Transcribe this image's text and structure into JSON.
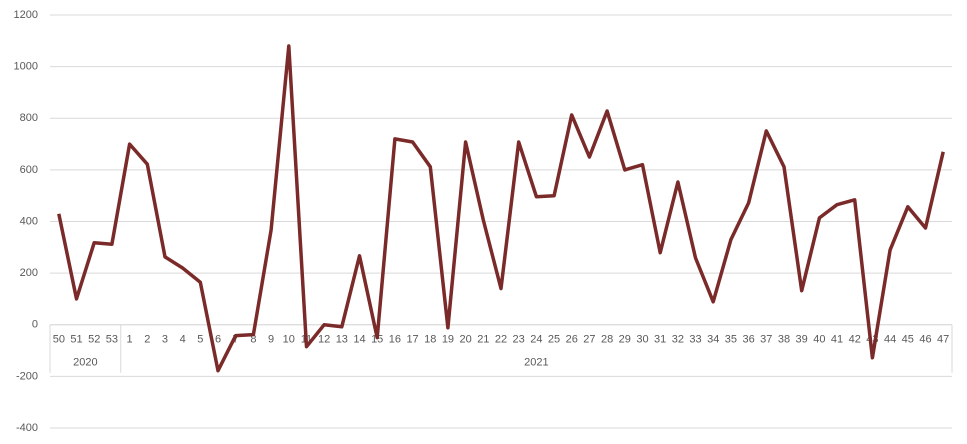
{
  "chart_data": {
    "type": "line",
    "categories": [
      "50",
      "51",
      "52",
      "53",
      "1",
      "2",
      "3",
      "4",
      "5",
      "6",
      "7",
      "8",
      "9",
      "10",
      "11",
      "12",
      "13",
      "14",
      "15",
      "16",
      "17",
      "18",
      "19",
      "20",
      "21",
      "22",
      "23",
      "24",
      "25",
      "26",
      "27",
      "28",
      "29",
      "30",
      "31",
      "32",
      "33",
      "34",
      "35",
      "36",
      "37",
      "38",
      "39",
      "40",
      "41",
      "42",
      "43",
      "44",
      "45",
      "46",
      "47"
    ],
    "x_groups": [
      {
        "label": "2020",
        "size": 4
      },
      {
        "label": "2021",
        "size": 47
      }
    ],
    "series": [
      {
        "color": "#7b2a2a",
        "values": [
          430,
          100,
          318,
          312,
          700,
          622,
          263,
          220,
          165,
          -178,
          -42,
          -38,
          367,
          1080,
          -85,
          0,
          -8,
          267,
          -50,
          720,
          708,
          612,
          -12,
          708,
          406,
          140,
          708,
          496,
          500,
          813,
          650,
          828,
          600,
          620,
          279,
          553,
          259,
          89,
          330,
          472,
          751,
          612,
          132,
          414,
          465,
          484,
          -128,
          290,
          457,
          375,
          670
        ]
      }
    ],
    "ylim": [
      -400,
      1200
    ],
    "yticks": [
      -400,
      -200,
      0,
      200,
      400,
      600,
      800,
      1000,
      1200
    ],
    "grid": true
  }
}
